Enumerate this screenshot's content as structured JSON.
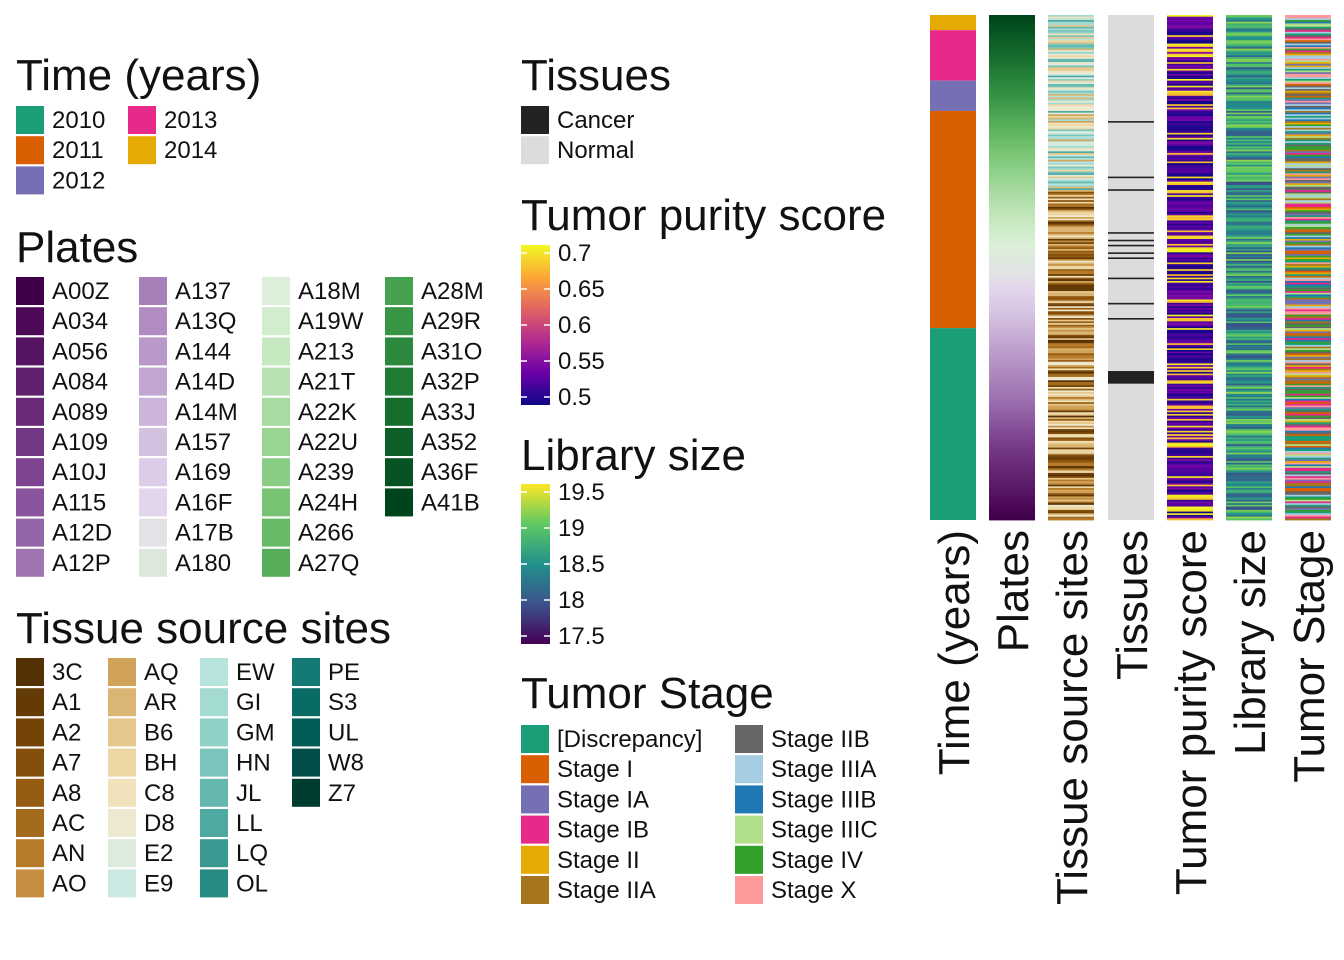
{
  "legends": {
    "time": {
      "title": "Time (years)",
      "items": [
        {
          "label": "2010",
          "color": "#1b9e77"
        },
        {
          "label": "2011",
          "color": "#d95f02"
        },
        {
          "label": "2012",
          "color": "#7570b3"
        },
        {
          "label": "2013",
          "color": "#e7298a"
        },
        {
          "label": "2014",
          "color": "#e6ab02"
        }
      ]
    },
    "plates": {
      "title": "Plates",
      "items": [
        {
          "label": "A00Z",
          "color": "#3f0049"
        },
        {
          "label": "A034",
          "color": "#4d0a57"
        },
        {
          "label": "A056",
          "color": "#561562"
        },
        {
          "label": "A084",
          "color": "#5f206c"
        },
        {
          "label": "A089",
          "color": "#6a2a77"
        },
        {
          "label": "A109",
          "color": "#743783"
        },
        {
          "label": "A10J",
          "color": "#7e448f"
        },
        {
          "label": "A115",
          "color": "#89549b"
        },
        {
          "label": "A12D",
          "color": "#9465a8"
        },
        {
          "label": "A12P",
          "color": "#9e74b1"
        },
        {
          "label": "A137",
          "color": "#a780ba"
        },
        {
          "label": "A13Q",
          "color": "#b08cc2"
        },
        {
          "label": "A144",
          "color": "#b999c9"
        },
        {
          "label": "A14D",
          "color": "#c2a6d1"
        },
        {
          "label": "A14M",
          "color": "#cbb4d9"
        },
        {
          "label": "A157",
          "color": "#d4c1e0"
        },
        {
          "label": "A169",
          "color": "#dccce7"
        },
        {
          "label": "A16F",
          "color": "#e3d6ec"
        },
        {
          "label": "A17B",
          "color": "#e3e2e6"
        },
        {
          "label": "A180",
          "color": "#dde8dd"
        },
        {
          "label": "A18M",
          "color": "#dcefd9"
        },
        {
          "label": "A19W",
          "color": "#d2edcd"
        },
        {
          "label": "A213",
          "color": "#c6e8c0"
        },
        {
          "label": "A21T",
          "color": "#b8e2b1"
        },
        {
          "label": "A22K",
          "color": "#a8dba1"
        },
        {
          "label": "A22U",
          "color": "#98d492"
        },
        {
          "label": "A239",
          "color": "#88cd83"
        },
        {
          "label": "A24H",
          "color": "#78c474"
        },
        {
          "label": "A266",
          "color": "#67ba66"
        },
        {
          "label": "A27Q",
          "color": "#56ae5a"
        },
        {
          "label": "A28M",
          "color": "#46a150"
        },
        {
          "label": "A29R",
          "color": "#379546"
        },
        {
          "label": "A31O",
          "color": "#2b883d"
        },
        {
          "label": "A32P",
          "color": "#207b35"
        },
        {
          "label": "A33J",
          "color": "#156d2e"
        },
        {
          "label": "A352",
          "color": "#0d6028"
        },
        {
          "label": "A36F",
          "color": "#055222"
        },
        {
          "label": "A41B",
          "color": "#00441b"
        }
      ]
    },
    "tss": {
      "title": "Tissue source sites",
      "items": [
        {
          "label": "3C",
          "color": "#543005"
        },
        {
          "label": "A1",
          "color": "#643a06"
        },
        {
          "label": "A2",
          "color": "#744407"
        },
        {
          "label": "A7",
          "color": "#844f0b"
        },
        {
          "label": "A8",
          "color": "#955d13"
        },
        {
          "label": "AC",
          "color": "#a46a1d"
        },
        {
          "label": "AN",
          "color": "#b57b2a"
        },
        {
          "label": "AO",
          "color": "#c48f42"
        },
        {
          "label": "AQ",
          "color": "#d0a25a"
        },
        {
          "label": "AR",
          "color": "#dbb573"
        },
        {
          "label": "B6",
          "color": "#e5c78c"
        },
        {
          "label": "BH",
          "color": "#ecd6a4"
        },
        {
          "label": "C8",
          "color": "#f1e2bb"
        },
        {
          "label": "D8",
          "color": "#eee9d1"
        },
        {
          "label": "E2",
          "color": "#dcebdc"
        },
        {
          "label": "E9",
          "color": "#cbe9e2"
        },
        {
          "label": "EW",
          "color": "#b6e3dc"
        },
        {
          "label": "GI",
          "color": "#a3dbd3"
        },
        {
          "label": "GM",
          "color": "#8fd1c7"
        },
        {
          "label": "HN",
          "color": "#7ac5bb"
        },
        {
          "label": "JL",
          "color": "#64b8ae"
        },
        {
          "label": "LL",
          "color": "#4ea9a0"
        },
        {
          "label": "LQ",
          "color": "#3a9a92"
        },
        {
          "label": "OL",
          "color": "#278a83"
        },
        {
          "label": "PE",
          "color": "#167a74"
        },
        {
          "label": "S3",
          "color": "#0a6b65"
        },
        {
          "label": "UL",
          "color": "#035c56"
        },
        {
          "label": "W8",
          "color": "#014d47"
        },
        {
          "label": "Z7",
          "color": "#003c30"
        }
      ]
    },
    "tissues": {
      "title": "Tissues",
      "items": [
        {
          "label": "Cancer",
          "color": "#222222"
        },
        {
          "label": "Normal",
          "color": "#dcdcdc"
        }
      ]
    },
    "purity": {
      "title": "Tumor purity score",
      "ticks": [
        "0.7",
        "0.65",
        "0.6",
        "0.55",
        "0.5"
      ],
      "colors": [
        "#f0f921",
        "#fca636",
        "#e16462",
        "#b12a90",
        "#6a00a8",
        "#0d0887"
      ]
    },
    "library": {
      "title": "Library size",
      "ticks": [
        "19.5",
        "19",
        "18.5",
        "18",
        "17.5"
      ],
      "colors": [
        "#fde725",
        "#5ec962",
        "#21918c",
        "#3b528b",
        "#440154"
      ]
    },
    "stage": {
      "title": "Tumor Stage",
      "items": [
        {
          "label": "[Discrepancy]",
          "color": "#1b9e77"
        },
        {
          "label": "Stage I",
          "color": "#d95f02"
        },
        {
          "label": "Stage IA",
          "color": "#7570b3"
        },
        {
          "label": "Stage IB",
          "color": "#e7298a"
        },
        {
          "label": "Stage II",
          "color": "#e6ab02"
        },
        {
          "label": "Stage IIA",
          "color": "#a6761d"
        },
        {
          "label": "Stage IIB",
          "color": "#666666"
        },
        {
          "label": "Stage IIIA",
          "color": "#a6cee3"
        },
        {
          "label": "Stage IIIB",
          "color": "#1f78b4"
        },
        {
          "label": "Stage IIIC",
          "color": "#b2df8a"
        },
        {
          "label": "Stage IV",
          "color": "#33a02c"
        },
        {
          "label": "Stage X",
          "color": "#fb9a99"
        }
      ]
    }
  },
  "chart_data": {
    "type": "heatmap",
    "orientation": "vertical annotation tracks",
    "tracks": [
      {
        "name": "Time (years)",
        "kind": "categorical",
        "segments_top_to_bottom": [
          {
            "category": "2014",
            "fraction": 0.03
          },
          {
            "category": "2013",
            "fraction": 0.1
          },
          {
            "category": "2012",
            "fraction": 0.06
          },
          {
            "category": "2011",
            "fraction": 0.43
          },
          {
            "category": "2010",
            "fraction": 0.38
          }
        ]
      },
      {
        "name": "Plates",
        "kind": "categorical",
        "sorted": "A41B (top) to A00Z (bottom)"
      },
      {
        "name": "Tissue source sites",
        "kind": "categorical",
        "pattern": "mixed"
      },
      {
        "name": "Tissues",
        "kind": "categorical",
        "dominant": "Normal",
        "cancer_band_fractions": [
          [
            0.705,
            0.73
          ]
        ],
        "cancer_line_fractions": [
          0.21,
          0.32,
          0.345,
          0.43,
          0.445,
          0.455,
          0.47,
          0.48,
          0.52,
          0.57,
          0.6
        ]
      },
      {
        "name": "Tumor purity score",
        "kind": "continuous",
        "range": [
          0.5,
          0.7
        ]
      },
      {
        "name": "Library size",
        "kind": "continuous",
        "range": [
          17.5,
          19.5
        ]
      },
      {
        "name": "Tumor Stage",
        "kind": "categorical",
        "pattern": "mixed"
      }
    ]
  },
  "strip_colors": {
    "white": "#ffffff",
    "normal": "#dcdcdc",
    "cancer": "#222222"
  }
}
